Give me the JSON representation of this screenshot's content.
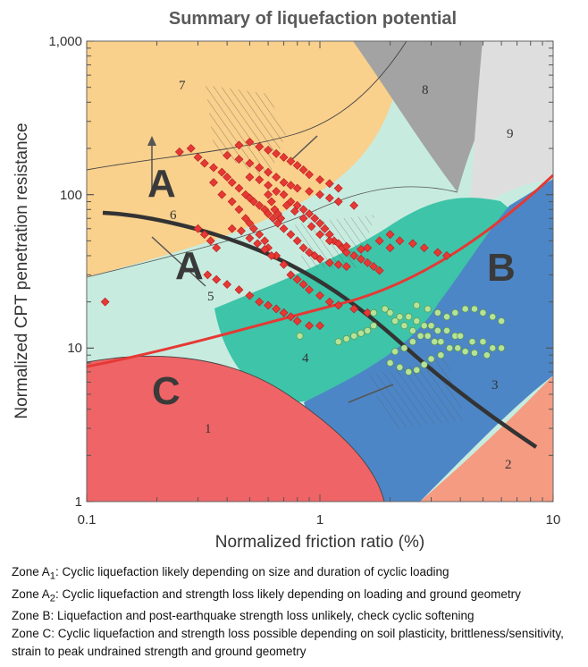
{
  "chart_data": {
    "type": "scatter",
    "title": "Summary of liquefaction potential",
    "xlabel": "Normalized friction ratio (%)",
    "ylabel": "Normalized CPT penetration resistance",
    "x_scale": "log",
    "y_scale": "log",
    "xlim": [
      0.1,
      10
    ],
    "ylim": [
      1,
      1000
    ],
    "x_ticks": [
      "0.1",
      "1",
      "10"
    ],
    "y_ticks": [
      "1",
      "10",
      "100",
      "1,000"
    ],
    "zone_numbers": [
      "1",
      "2",
      "3",
      "4",
      "5",
      "6",
      "7",
      "8",
      "9"
    ],
    "zone_letters": [
      "A",
      "A",
      "B",
      "C"
    ],
    "zone_subscripts": [
      "1",
      "2"
    ],
    "series": [
      {
        "marker": "diamond",
        "color": "#e53935",
        "points": [
          [
            0.25,
            190
          ],
          [
            0.28,
            200
          ],
          [
            0.3,
            175
          ],
          [
            0.32,
            160
          ],
          [
            0.35,
            150
          ],
          [
            0.38,
            140
          ],
          [
            0.4,
            130
          ],
          [
            0.42,
            120
          ],
          [
            0.45,
            110
          ],
          [
            0.48,
            100
          ],
          [
            0.5,
            95
          ],
          [
            0.52,
            90
          ],
          [
            0.55,
            85
          ],
          [
            0.58,
            80
          ],
          [
            0.6,
            75
          ],
          [
            0.63,
            70
          ],
          [
            0.66,
            65
          ],
          [
            0.7,
            60
          ],
          [
            0.75,
            55
          ],
          [
            0.8,
            50
          ],
          [
            0.85,
            45
          ],
          [
            0.9,
            42
          ],
          [
            0.95,
            40
          ],
          [
            1.0,
            38
          ],
          [
            1.1,
            36
          ],
          [
            1.2,
            35
          ],
          [
            1.3,
            34
          ],
          [
            0.4,
            180
          ],
          [
            0.45,
            170
          ],
          [
            0.5,
            160
          ],
          [
            0.55,
            150
          ],
          [
            0.6,
            140
          ],
          [
            0.65,
            130
          ],
          [
            0.7,
            120
          ],
          [
            0.75,
            115
          ],
          [
            0.8,
            110
          ],
          [
            0.9,
            105
          ],
          [
            1.0,
            100
          ],
          [
            1.1,
            95
          ],
          [
            1.2,
            90
          ],
          [
            1.4,
            85
          ],
          [
            0.35,
            120
          ],
          [
            0.38,
            100
          ],
          [
            0.42,
            90
          ],
          [
            0.45,
            80
          ],
          [
            0.48,
            70
          ],
          [
            0.5,
            65
          ],
          [
            0.52,
            60
          ],
          [
            0.55,
            55
          ],
          [
            0.58,
            50
          ],
          [
            0.6,
            45
          ],
          [
            0.65,
            40
          ],
          [
            0.7,
            35
          ],
          [
            0.75,
            30
          ],
          [
            0.8,
            28
          ],
          [
            0.85,
            26
          ],
          [
            0.9,
            24
          ],
          [
            1.0,
            22
          ],
          [
            1.1,
            20
          ],
          [
            1.2,
            19
          ],
          [
            1.4,
            18
          ],
          [
            1.6,
            17
          ],
          [
            0.33,
            30
          ],
          [
            0.36,
            28
          ],
          [
            0.4,
            26
          ],
          [
            0.45,
            24
          ],
          [
            0.5,
            22
          ],
          [
            0.55,
            20
          ],
          [
            0.6,
            19
          ],
          [
            0.65,
            18
          ],
          [
            0.7,
            17
          ],
          [
            0.75,
            16
          ],
          [
            0.8,
            15
          ],
          [
            0.9,
            14
          ],
          [
            1.0,
            14
          ],
          [
            0.3,
            60
          ],
          [
            0.32,
            55
          ],
          [
            0.34,
            50
          ],
          [
            0.36,
            45
          ],
          [
            0.5,
            130
          ],
          [
            0.55,
            125
          ],
          [
            0.6,
            115
          ],
          [
            0.65,
            105
          ],
          [
            0.7,
            100
          ],
          [
            0.75,
            90
          ],
          [
            0.8,
            85
          ],
          [
            0.85,
            80
          ],
          [
            0.9,
            75
          ],
          [
            0.95,
            70
          ],
          [
            1.0,
            65
          ],
          [
            1.05,
            60
          ],
          [
            1.1,
            55
          ],
          [
            1.15,
            50
          ],
          [
            1.2,
            48
          ],
          [
            1.25,
            45
          ],
          [
            1.3,
            42
          ],
          [
            1.4,
            40
          ],
          [
            1.5,
            38
          ],
          [
            1.6,
            36
          ],
          [
            1.7,
            34
          ],
          [
            1.8,
            32
          ],
          [
            2.0,
            55
          ],
          [
            2.2,
            50
          ],
          [
            2.5,
            48
          ],
          [
            2.8,
            45
          ],
          [
            3.2,
            42
          ],
          [
            3.5,
            40
          ],
          [
            1.6,
            45
          ],
          [
            1.8,
            50
          ],
          [
            2.0,
            45
          ],
          [
            0.45,
            210
          ],
          [
            0.5,
            220
          ],
          [
            0.55,
            205
          ],
          [
            0.6,
            195
          ],
          [
            0.65,
            185
          ],
          [
            0.7,
            175
          ],
          [
            0.75,
            165
          ],
          [
            0.8,
            155
          ],
          [
            0.85,
            145
          ],
          [
            0.9,
            135
          ],
          [
            1.0,
            125
          ],
          [
            1.1,
            118
          ],
          [
            1.2,
            110
          ],
          [
            0.6,
            100
          ],
          [
            0.62,
            90
          ],
          [
            0.64,
            80
          ],
          [
            0.66,
            75
          ],
          [
            0.68,
            70
          ],
          [
            0.12,
            20
          ],
          [
            0.72,
            85
          ],
          [
            0.78,
            78
          ],
          [
            0.85,
            70
          ],
          [
            0.92,
            62
          ],
          [
            1.0,
            55
          ],
          [
            1.1,
            50
          ],
          [
            1.3,
            46
          ],
          [
            1.5,
            44
          ],
          [
            0.42,
            60
          ],
          [
            0.46,
            58
          ],
          [
            0.5,
            52
          ],
          [
            0.54,
            48
          ],
          [
            0.58,
            44
          ],
          [
            0.62,
            40
          ]
        ]
      },
      {
        "marker": "circle",
        "color": "#b5e39a",
        "points": [
          [
            1.9,
            18
          ],
          [
            2.0,
            17
          ],
          [
            2.2,
            16
          ],
          [
            2.4,
            16
          ],
          [
            2.6,
            15
          ],
          [
            2.8,
            14
          ],
          [
            3.0,
            14
          ],
          [
            3.2,
            13
          ],
          [
            3.5,
            13
          ],
          [
            3.8,
            12
          ],
          [
            4.0,
            12
          ],
          [
            4.5,
            11
          ],
          [
            5.0,
            11
          ],
          [
            5.5,
            10
          ],
          [
            6.0,
            10
          ],
          [
            1.7,
            17
          ],
          [
            2.1,
            15
          ],
          [
            2.3,
            14
          ],
          [
            2.5,
            13
          ],
          [
            2.7,
            12
          ],
          [
            2.9,
            12
          ],
          [
            3.1,
            11
          ],
          [
            3.3,
            11
          ],
          [
            3.6,
            10
          ],
          [
            3.9,
            10
          ],
          [
            4.2,
            9.5
          ],
          [
            4.6,
            9.3
          ],
          [
            5.2,
            9
          ],
          [
            2.0,
            8
          ],
          [
            2.2,
            7.5
          ],
          [
            2.4,
            7
          ],
          [
            2.6,
            7.2
          ],
          [
            2.8,
            7.8
          ],
          [
            3.0,
            8.5
          ],
          [
            3.3,
            9
          ],
          [
            1.2,
            11
          ],
          [
            1.3,
            11.5
          ],
          [
            1.4,
            12
          ],
          [
            1.5,
            12.5
          ],
          [
            1.6,
            13
          ],
          [
            1.7,
            14
          ],
          [
            3.5,
            16
          ],
          [
            3.8,
            17
          ],
          [
            4.2,
            18
          ],
          [
            4.6,
            18
          ],
          [
            5.0,
            17
          ],
          [
            5.5,
            16
          ],
          [
            6.0,
            15
          ],
          [
            2.6,
            19
          ],
          [
            2.9,
            18
          ],
          [
            3.2,
            17
          ],
          [
            0.82,
            12
          ],
          [
            2.1,
            9.5
          ],
          [
            2.3,
            10
          ],
          [
            2.5,
            11
          ]
        ]
      }
    ]
  },
  "notes": [
    {
      "zone": "Zone A",
      "sub": "1",
      "text": ": Cyclic liquefaction likely depending on size and duration of cyclic loading"
    },
    {
      "zone": "Zone A",
      "sub": "2",
      "text": ": Cyclic liquefaction and strength loss likely depending on loading and ground geometry"
    },
    {
      "zone": "Zone B",
      "sub": "",
      "text": ": Liquefaction and post-earthquake strength loss unlikely, check cyclic softening"
    },
    {
      "zone": "Zone C",
      "sub": "",
      "text": ": Cyclic liquefaction and strength loss possible depending on soil plasticity, brittleness/sensitivity, strain to peak undrained strength and ground geometry"
    }
  ]
}
